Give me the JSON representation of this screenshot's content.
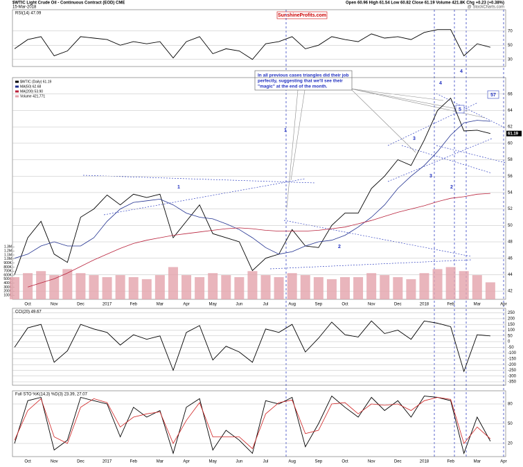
{
  "header": {
    "title": "$WTIC Light Crude Oil - Continuous Contract (EOD) CME",
    "date": "15-Mar-2018",
    "quote": "Open 60.96 High 61.54 Low 60.82 Close 61.19 Volume 421.8K Chg +0.23 (+0.38%)",
    "source": "@ StockCharts.com",
    "watermark": "SunshineProfits.com"
  },
  "annotations": {
    "note": [
      "In all previous cases triangles did their job",
      "perfectly, suggesting that we'll see their",
      "\"magic\" at the end of the month."
    ],
    "labels": [
      "1",
      "1",
      "2",
      "2",
      "3",
      "3",
      "4",
      "4",
      "5",
      "57"
    ],
    "price_tag": "61.19"
  },
  "chart_data": [
    {
      "type": "line",
      "title": "RSI(14) 47.09",
      "ylim": [
        20,
        100
      ],
      "yticks": [
        30,
        50,
        70
      ],
      "grid": true,
      "series": [
        {
          "color": "#000000",
          "values": [
            45,
            58,
            62,
            35,
            42,
            62,
            60,
            58,
            50,
            55,
            52,
            55,
            32,
            55,
            62,
            38,
            45,
            42,
            30,
            52,
            55,
            62,
            45,
            50,
            62,
            58,
            55,
            66,
            60,
            62,
            58,
            68,
            72,
            72,
            35,
            52,
            47.09,
            null
          ]
        }
      ]
    },
    {
      "type": "line",
      "ylim": [
        41,
        68
      ],
      "yticks": [
        42,
        44,
        46,
        48,
        50,
        52,
        54,
        56,
        58,
        60,
        62,
        64,
        66
      ],
      "grid": true,
      "y2lim": [
        0,
        5500000
      ],
      "y2ticks": [
        {
          "value": 100000,
          "label": "100K"
        },
        {
          "value": 200000,
          "label": "200K"
        },
        {
          "value": 300000,
          "label": "300K"
        },
        {
          "value": 400000,
          "label": "400K"
        },
        {
          "value": 500000,
          "label": "500K"
        },
        {
          "value": 600000,
          "label": "600K"
        },
        {
          "value": 700000,
          "label": "700K"
        },
        {
          "value": 800000,
          "label": "800K"
        },
        {
          "value": 900000,
          "label": "900K"
        },
        {
          "value": 1000000,
          "label": "1.0M"
        },
        {
          "value": 1100000,
          "label": "1.1M"
        },
        {
          "value": 1200000,
          "label": "1.2M"
        },
        {
          "value": 1300000,
          "label": "1.3M"
        }
      ],
      "categories": [
        null,
        "Oct",
        null,
        "Nov",
        null,
        "Dec",
        null,
        "2017",
        null,
        "Feb",
        null,
        "Mar",
        null,
        "Apr",
        null,
        "May",
        null,
        "Jun",
        null,
        "Jul",
        null,
        "Aug",
        null,
        "Sep",
        null,
        "Oct",
        null,
        "Nov",
        null,
        "Dec",
        null,
        "2018",
        null,
        "Feb",
        null,
        "Mar",
        null,
        "Apr"
      ],
      "series": [
        {
          "name": "$WTIC (Daily) 61.19",
          "color": "#000000",
          "values": [
            44,
            48.5,
            50.5,
            46.5,
            45.5,
            51,
            52,
            53.7,
            52.5,
            53.8,
            53.4,
            53.8,
            48.5,
            50.5,
            52.5,
            49,
            48.5,
            48,
            44.5,
            46,
            46.5,
            49.5,
            47.5,
            47.3,
            50,
            51.5,
            51.5,
            54.5,
            56,
            58,
            57.3,
            60.4,
            64,
            65.5,
            61.5,
            61.6,
            61.19,
            null
          ]
        },
        {
          "name": "MA(50) 62.68",
          "color": "#1f2f8f",
          "values": [
            46,
            46.5,
            47.5,
            48,
            47.5,
            47.5,
            48.5,
            50.5,
            52,
            52.8,
            53,
            53.2,
            52.5,
            51.5,
            51,
            50.8,
            50.2,
            49.5,
            48.5,
            47.3,
            46.5,
            46.8,
            47.5,
            48,
            48.2,
            48.8,
            49.8,
            51,
            52.5,
            54.5,
            56,
            57.3,
            59,
            61,
            62.5,
            62.8,
            62.68,
            null
          ]
        },
        {
          "name": "MA(200) 53.90",
          "color": "#b8203a",
          "values": [
            null,
            42.5,
            43,
            43.5,
            44.2,
            45,
            45.8,
            46.5,
            47.2,
            47.8,
            48.2,
            48.5,
            48.8,
            49,
            49.2,
            49.4,
            49.6,
            49.7,
            49.6,
            49.4,
            49.3,
            49.3,
            49.3,
            49.4,
            49.6,
            49.8,
            50.2,
            50.6,
            51.1,
            51.6,
            52,
            52.4,
            52.9,
            53.3,
            53.5,
            53.8,
            53.9,
            null
          ]
        },
        {
          "name": "Volume 421,771",
          "color": "#e3a3ab",
          "type": "bar",
          "axis": "y2",
          "values": [
            550000,
            650000,
            700000,
            600000,
            750000,
            650000,
            600000,
            550000,
            600000,
            550000,
            500000,
            600000,
            800000,
            600000,
            550000,
            650000,
            600000,
            550000,
            700000,
            600000,
            550000,
            650000,
            600000,
            550000,
            500000,
            550000,
            550000,
            650000,
            600000,
            550000,
            500000,
            650000,
            750000,
            800000,
            700000,
            600000,
            421771,
            null
          ]
        }
      ]
    },
    {
      "type": "line",
      "title": "CCI(20) 49.67",
      "ylim": [
        -380,
        290
      ],
      "yticks": [
        -350,
        -300,
        -250,
        -200,
        -150,
        -100,
        -50,
        0,
        50,
        100,
        150,
        200,
        250
      ],
      "grid": true,
      "series": [
        {
          "color": "#000000",
          "values": [
            -50,
            120,
            150,
            -180,
            -80,
            150,
            110,
            80,
            -30,
            60,
            20,
            50,
            -250,
            80,
            140,
            -160,
            -40,
            -90,
            -180,
            110,
            80,
            150,
            -90,
            30,
            170,
            60,
            40,
            180,
            70,
            100,
            20,
            180,
            160,
            130,
            -260,
            60,
            49.67,
            null
          ]
        }
      ]
    },
    {
      "type": "line",
      "title": "Full STO %K(14,3) %D(3) 23.39, 27.07",
      "ylim": [
        0,
        100
      ],
      "yticks": [
        20,
        50,
        80
      ],
      "grid": true,
      "categories": [
        null,
        "Oct",
        null,
        "Nov",
        null,
        "Dec",
        null,
        "2017",
        null,
        "Feb",
        null,
        "Mar",
        null,
        "Apr",
        null,
        "May",
        null,
        "Jun",
        null,
        "Jul",
        null,
        "Aug",
        null,
        "Sep",
        null,
        "Oct",
        null,
        "Nov",
        null,
        "Dec",
        null,
        "2018",
        null,
        "Feb",
        null,
        "Mar",
        null,
        "Apr"
      ],
      "series": [
        {
          "color": "#000000",
          "values": [
            20,
            85,
            90,
            10,
            25,
            90,
            85,
            80,
            30,
            75,
            60,
            70,
            5,
            75,
            88,
            10,
            40,
            25,
            5,
            85,
            80,
            90,
            15,
            50,
            92,
            75,
            60,
            90,
            70,
            85,
            60,
            92,
            90,
            85,
            5,
            60,
            23.39,
            null
          ]
        },
        {
          "color": "#d02020",
          "values": [
            25,
            70,
            88,
            30,
            20,
            75,
            88,
            82,
            45,
            60,
            65,
            68,
            20,
            55,
            82,
            30,
            30,
            30,
            12,
            65,
            82,
            86,
            35,
            40,
            80,
            82,
            65,
            80,
            78,
            80,
            70,
            85,
            90,
            87,
            20,
            45,
            27.07,
            null
          ]
        }
      ]
    }
  ]
}
